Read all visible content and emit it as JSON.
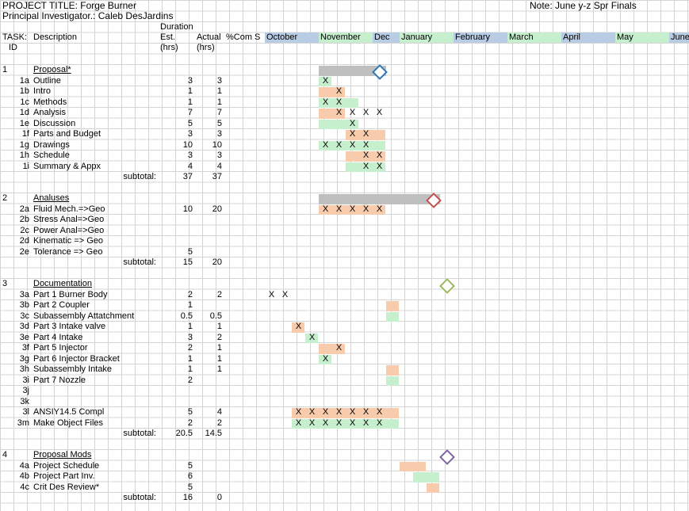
{
  "project": {
    "title": "PROJECT TITLE: Forge Burner",
    "investigator": "Principal Investigator.: Caleb DesJardins",
    "note": "Note: June y-z Spr Finals"
  },
  "headers": {
    "duration": "Duration",
    "task": "TASK:",
    "id": "ID",
    "description": "Description",
    "est": "Est.",
    "est_unit": "(hrs)",
    "actual": "Actual",
    "actual_unit": "(hrs)",
    "pct_complete": "%Com",
    "s_col": "S",
    "months": [
      "October",
      "November",
      "Dec",
      "January",
      "February",
      "March",
      "April",
      "May",
      "June"
    ]
  },
  "colors": {
    "orange": "#f8cbad",
    "green": "#c6efce",
    "blue_header": "#b8cce4",
    "green_header": "#c6efce",
    "gray_bar": "#bfbfbf",
    "diamond_blue": "#2e75b6",
    "diamond_red": "#c0504d",
    "diamond_green": "#9bbb59",
    "diamond_purple": "#8064a2"
  },
  "mark": "X",
  "subtotal_label": "subtotal:",
  "sections": [
    {
      "id": "1",
      "title": "Proposal*",
      "rows": [
        {
          "id": "1a",
          "desc": "Outline",
          "est": "3",
          "actual": "3"
        },
        {
          "id": "1b",
          "desc": "Intro",
          "est": "1",
          "actual": "1"
        },
        {
          "id": "1c",
          "desc": "Methods",
          "est": "1",
          "actual": "1"
        },
        {
          "id": "1d",
          "desc": "Analysis",
          "est": "7",
          "actual": "7"
        },
        {
          "id": "1e",
          "desc": "Discussion",
          "est": "5",
          "actual": "5"
        },
        {
          "id": "1f",
          "desc": "Parts and Budget",
          "est": "3",
          "actual": "3"
        },
        {
          "id": "1g",
          "desc": "Drawings",
          "est": "10",
          "actual": "10"
        },
        {
          "id": "1h",
          "desc": "Schedule",
          "est": "3",
          "actual": "3"
        },
        {
          "id": "1i",
          "desc": "Summary & Appx",
          "est": "4",
          "actual": "4"
        }
      ],
      "subtotal": {
        "est": "37",
        "actual": "37"
      }
    },
    {
      "id": "2",
      "title": "Analuses",
      "rows": [
        {
          "id": "2a",
          "desc": "Fluid Mech.=>Geo",
          "est": "10",
          "actual": "20"
        },
        {
          "id": "2b",
          "desc": "Stress Anal=>Geo",
          "est": "",
          "actual": ""
        },
        {
          "id": "2c",
          "desc": "Power Anal=>Geo",
          "est": "",
          "actual": ""
        },
        {
          "id": "2d",
          "desc": "Kinematic => Geo",
          "est": "",
          "actual": ""
        },
        {
          "id": "2e",
          "desc": "Tolerance => Geo",
          "est": "5",
          "actual": ""
        }
      ],
      "subtotal": {
        "est": "15",
        "actual": "20"
      }
    },
    {
      "id": "3",
      "title": "Documentation",
      "rows": [
        {
          "id": "3a",
          "desc": "Part 1 Burner Body",
          "est": "2",
          "actual": "2"
        },
        {
          "id": "3b",
          "desc": "Part 2 Coupler",
          "est": "1",
          "actual": ""
        },
        {
          "id": "3c",
          "desc": "Subassembly Attatchment",
          "est": "0.5",
          "actual": "0.5"
        },
        {
          "id": "3d",
          "desc": "Part 3 Intake valve",
          "est": "1",
          "actual": "1"
        },
        {
          "id": "3e",
          "desc": "Part 4 Intake",
          "est": "3",
          "actual": "2"
        },
        {
          "id": "3f",
          "desc": "Part 5 Injector",
          "est": "2",
          "actual": "1"
        },
        {
          "id": "3g",
          "desc": "Part 6 Injector Bracket",
          "est": "1",
          "actual": "1"
        },
        {
          "id": "3h",
          "desc": "Subassembly Intake",
          "est": "1",
          "actual": "1"
        },
        {
          "id": "3i",
          "desc": "Part 7 Nozzle",
          "est": "2",
          "actual": ""
        },
        {
          "id": "3j",
          "desc": "",
          "est": "",
          "actual": ""
        },
        {
          "id": "3k",
          "desc": "",
          "est": "",
          "actual": ""
        },
        {
          "id": "3l",
          "desc": "ANSIY14.5 Compl",
          "est": "5",
          "actual": "4"
        },
        {
          "id": "3m",
          "desc": "Make Object Files",
          "est": "2",
          "actual": "2"
        }
      ],
      "subtotal": {
        "est": "20.5",
        "actual": "14.5"
      }
    },
    {
      "id": "4",
      "title": "Proposal Mods",
      "rows": [
        {
          "id": "4a",
          "desc": "Project Schedule",
          "est": "5",
          "actual": ""
        },
        {
          "id": "4b",
          "desc": "Project Part Inv.",
          "est": "6",
          "actual": ""
        },
        {
          "id": "4c",
          "desc": "Crit Des Review*",
          "est": "5",
          "actual": ""
        }
      ],
      "subtotal": {
        "est": "16",
        "actual": "0"
      }
    }
  ]
}
